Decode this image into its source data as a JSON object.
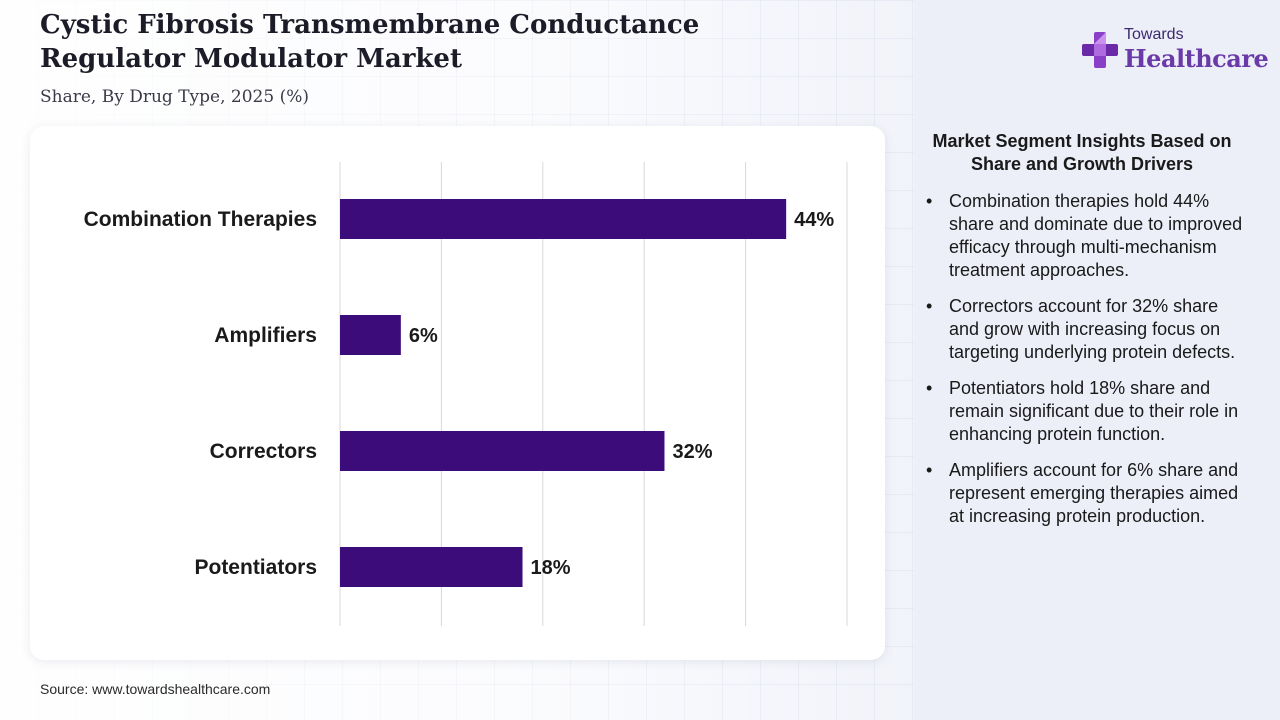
{
  "title": "Cystic Fibrosis Transmembrane Conductance Regulator Modulator Market",
  "subtitle": "Share, By Drug Type, 2025 (%)",
  "source": "Source: www.towardshealthcare.com",
  "logo": {
    "line1": "Towards",
    "line2": "Healthcare"
  },
  "insights": {
    "title": "Market Segment Insights Based on Share and Growth Drivers",
    "items": [
      "Combination therapies hold 44% share and dominate due to improved efficacy through multi-mechanism treatment approaches.",
      "Correctors account for 32% share and grow with increasing focus on targeting underlying protein defects.",
      "Potentiators hold 18% share and remain significant due to their role in enhancing protein function.",
      "Amplifiers account for 6% share and represent emerging therapies aimed at increasing protein production."
    ]
  },
  "colors": {
    "bar": "#3c0d7a",
    "gridline": "#d8d8d8"
  },
  "chart_data": {
    "type": "bar",
    "orientation": "horizontal",
    "title": "Cystic Fibrosis Transmembrane Conductance Regulator Modulator Market",
    "subtitle": "Share, By Drug Type, 2025 (%)",
    "categories": [
      "Combination Therapies",
      "Amplifiers",
      "Correctors",
      "Potentiators"
    ],
    "values": [
      44,
      6,
      32,
      18
    ],
    "value_labels": [
      "44%",
      "6%",
      "32%",
      "18%"
    ],
    "xlim": [
      0,
      50
    ],
    "grid": true,
    "legend": "none"
  }
}
